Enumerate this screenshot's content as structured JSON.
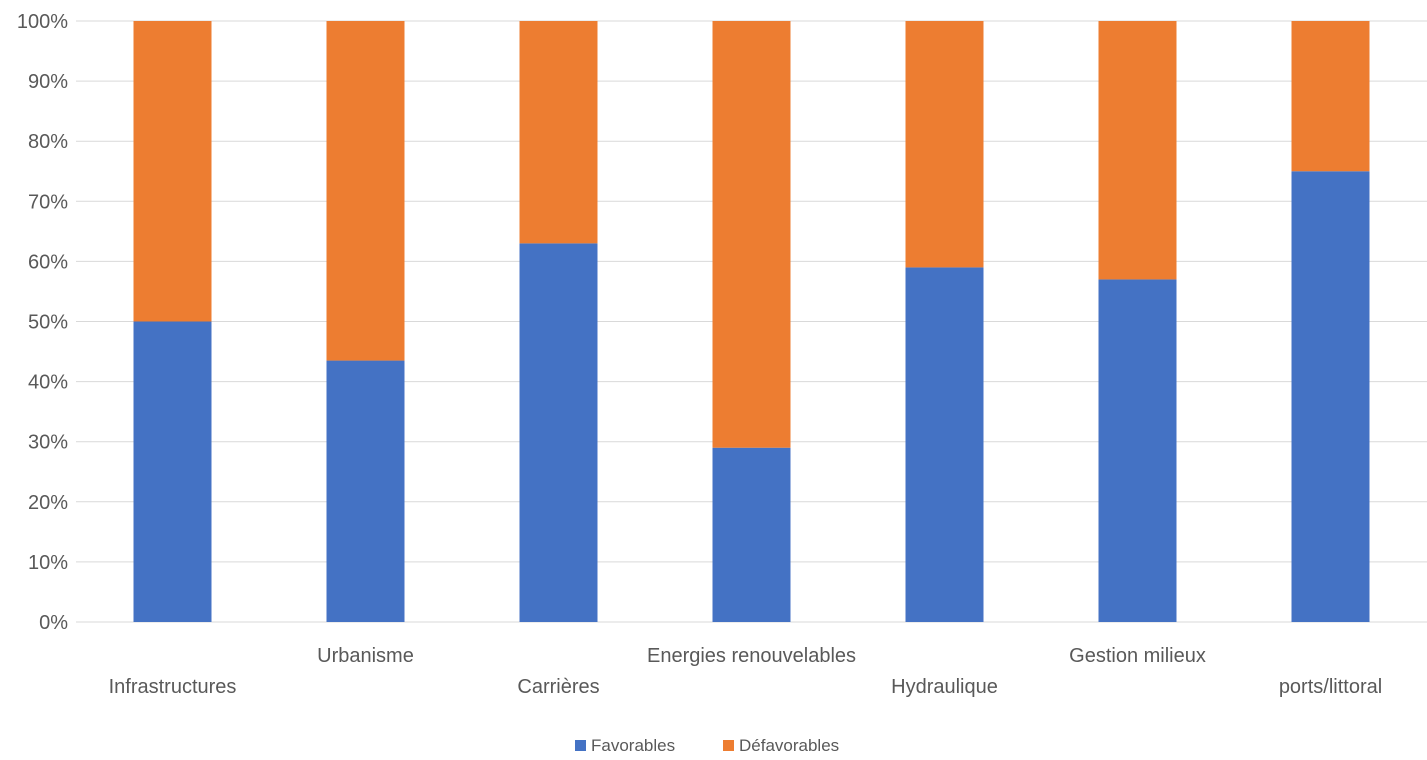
{
  "chart_data": {
    "type": "bar",
    "stacked": true,
    "percent_stacked": true,
    "categories": [
      "Infrastructures",
      "Urbanisme",
      "Carrières",
      "Energies renouvelables",
      "Hydraulique",
      "Gestion milieux",
      "ports/littoral"
    ],
    "series": [
      {
        "name": "Favorables",
        "color": "#4472C4",
        "values": [
          50,
          43.5,
          63,
          29,
          59,
          57,
          75
        ]
      },
      {
        "name": "Défavorables",
        "color": "#ED7D31",
        "values": [
          50,
          56.5,
          37,
          71,
          41,
          43,
          25
        ]
      }
    ],
    "y_ticks": [
      "0%",
      "10%",
      "20%",
      "30%",
      "40%",
      "50%",
      "60%",
      "70%",
      "80%",
      "90%",
      "100%"
    ],
    "ylim": [
      0,
      100
    ],
    "grid": true,
    "legend_position": "bottom"
  }
}
